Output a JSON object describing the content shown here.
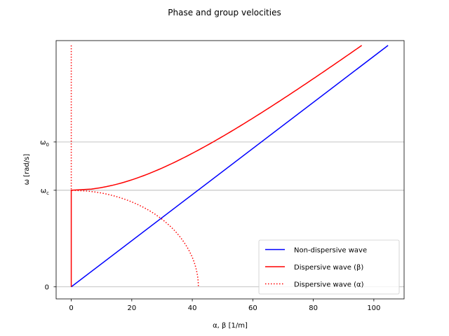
{
  "chart_data": {
    "type": "line",
    "title": "Phase and group velocities",
    "xlabel": "α,  β [1/m]",
    "ylabel": "ω [rad/s]",
    "xlim": [
      -5,
      110
    ],
    "ylim": [
      -0.25,
      5.1
    ],
    "x_ticks": [
      {
        "value": 0,
        "label": "0"
      },
      {
        "value": 20,
        "label": "20"
      },
      {
        "value": 40,
        "label": "40"
      },
      {
        "value": 60,
        "label": "60"
      },
      {
        "value": 80,
        "label": "80"
      },
      {
        "value": 100,
        "label": "100"
      }
    ],
    "y_ticks": [
      {
        "value": 0,
        "label": "0",
        "sub": ""
      },
      {
        "value": 2,
        "label": "ω",
        "sub": "c"
      },
      {
        "value": 3,
        "label": "ω",
        "sub": "0"
      }
    ],
    "grid": "horizontal",
    "legend_position": "bottom-right",
    "series": [
      {
        "name": "Non-dispersive wave",
        "color": "#0000ff",
        "style": "solid",
        "kind": "linear",
        "points": [
          [
            0,
            0
          ],
          [
            104.7,
            5
          ]
        ]
      },
      {
        "name": "Dispersive wave (β)",
        "color": "#ff0000",
        "style": "solid",
        "kind": "dispersive-beta",
        "wc": 2,
        "w_max": 5,
        "k_at_w_max": 96
      },
      {
        "name": "Dispersive wave (α)",
        "color": "#ff0000",
        "style": "dotted",
        "kind": "dispersive-alpha",
        "wc": 2,
        "w_max": 5,
        "alpha_at_zero": 42
      }
    ]
  }
}
